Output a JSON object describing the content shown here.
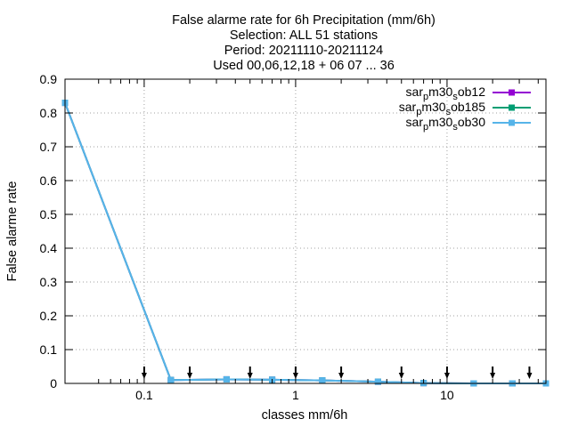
{
  "chart_data": {
    "type": "line",
    "title_lines": [
      "False alarme rate  for 6h Precipitation (mm/6h)",
      "Selection: ALL     51 stations",
      "Period: 20211110-20211124",
      "Used 00,06,12,18 + 06 07 ... 36"
    ],
    "xlabel": "classes mm/6h",
    "ylabel": "False alarme rate",
    "x_scale": "log",
    "xlim": [
      0.03,
      45
    ],
    "ylim": [
      0,
      0.9
    ],
    "x_ticks": [
      {
        "value": 0.1,
        "label": "0.1"
      },
      {
        "value": 1,
        "label": "1"
      },
      {
        "value": 10,
        "label": "10"
      }
    ],
    "x_minor_ticks": [
      0.05,
      0.06,
      0.07,
      0.08,
      0.09,
      0.2,
      0.3,
      0.4,
      0.5,
      0.6,
      0.7,
      0.8,
      0.9,
      2,
      3,
      4,
      5,
      6,
      7,
      8,
      9,
      20,
      30,
      40
    ],
    "y_ticks": [
      {
        "value": 0,
        "label": "0"
      },
      {
        "value": 0.1,
        "label": "0.1"
      },
      {
        "value": 0.2,
        "label": "0.2"
      },
      {
        "value": 0.3,
        "label": "0.3"
      },
      {
        "value": 0.4,
        "label": "0.4"
      },
      {
        "value": 0.5,
        "label": "0.5"
      },
      {
        "value": 0.6,
        "label": "0.6"
      },
      {
        "value": 0.7,
        "label": "0.7"
      },
      {
        "value": 0.8,
        "label": "0.8"
      },
      {
        "value": 0.9,
        "label": "0.9"
      }
    ],
    "grid": true,
    "legend_position": "top-right",
    "threshold_markers": [
      0.1,
      0.2,
      0.5,
      1,
      2,
      5,
      10,
      20,
      35
    ],
    "series": [
      {
        "name": "sar_p m30_s ob12",
        "legend_parts": [
          {
            "text": "sar",
            "sub": false
          },
          {
            "text": "p",
            "sub": true
          },
          {
            "text": "m30",
            "sub": false
          },
          {
            "text": "s",
            "sub": true
          },
          {
            "text": "ob12",
            "sub": false
          }
        ],
        "color": "#9400d3",
        "x": [
          0.03,
          0.15,
          0.35,
          0.7,
          1.5,
          3.5,
          7,
          15,
          27,
          45
        ],
        "y": [
          0.83,
          0.01,
          0.012,
          0.011,
          0.009,
          0.005,
          0.001,
          0.0,
          0.0,
          0.0
        ]
      },
      {
        "name": "sar_p m30_s ob185",
        "legend_parts": [
          {
            "text": "sar",
            "sub": false
          },
          {
            "text": "p",
            "sub": true
          },
          {
            "text": "m30",
            "sub": false
          },
          {
            "text": "s",
            "sub": true
          },
          {
            "text": "ob185",
            "sub": false
          }
        ],
        "color": "#009e73",
        "x": [
          0.03,
          0.15,
          0.35,
          0.7,
          1.5,
          3.5,
          7,
          15,
          27,
          45
        ],
        "y": [
          0.83,
          0.01,
          0.012,
          0.011,
          0.009,
          0.005,
          0.001,
          0.0,
          0.0,
          0.0
        ]
      },
      {
        "name": "sar_p m30_s ob30",
        "legend_parts": [
          {
            "text": "sar",
            "sub": false
          },
          {
            "text": "p",
            "sub": true
          },
          {
            "text": "m30",
            "sub": false
          },
          {
            "text": "s",
            "sub": true
          },
          {
            "text": "ob30",
            "sub": false
          }
        ],
        "color": "#56b4e9",
        "x": [
          0.03,
          0.15,
          0.35,
          0.7,
          1.5,
          3.5,
          7,
          15,
          27,
          45
        ],
        "y": [
          0.83,
          0.01,
          0.012,
          0.011,
          0.009,
          0.005,
          0.001,
          0.0,
          0.0,
          0.0
        ]
      }
    ]
  }
}
